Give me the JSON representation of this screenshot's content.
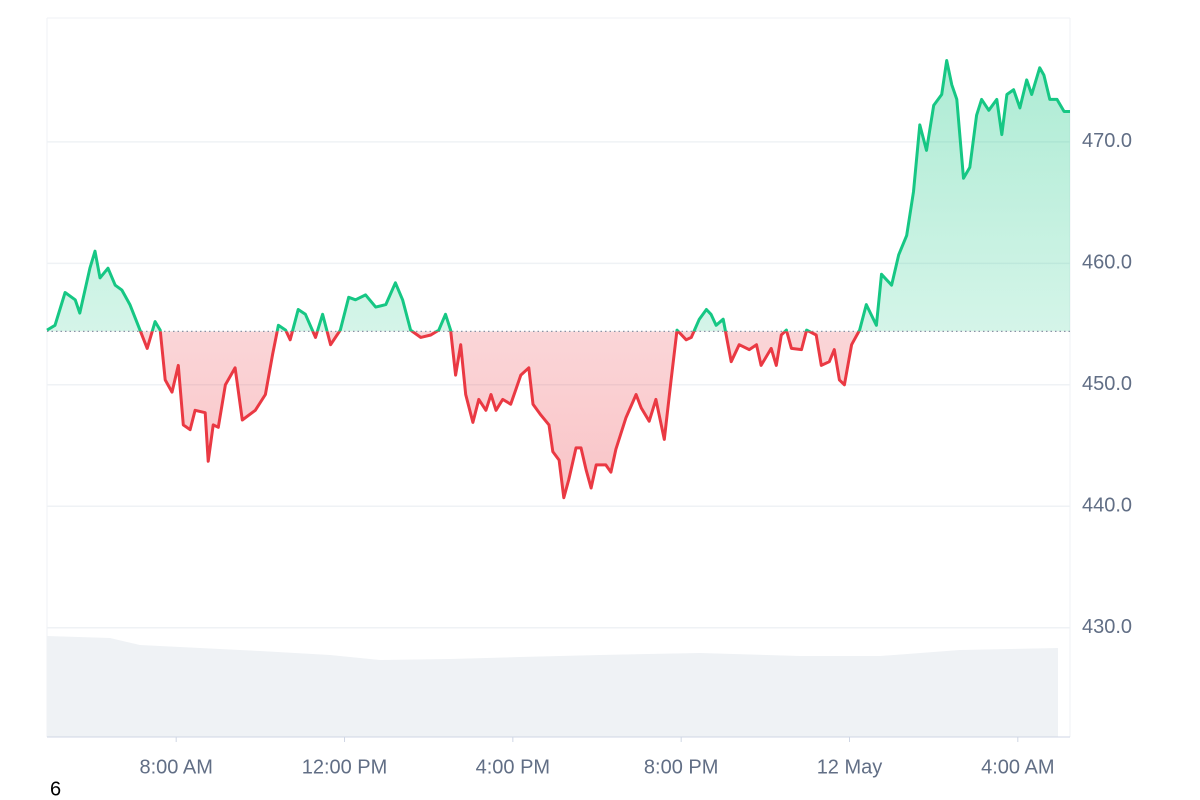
{
  "chart_data": {
    "type": "line",
    "footer": "6",
    "x": [
      4.93,
      5.12,
      5.36,
      5.6,
      5.71,
      5.95,
      6.07,
      6.19,
      6.38,
      6.55,
      6.71,
      6.9,
      7.14,
      7.31,
      7.5,
      7.62,
      7.74,
      7.9,
      8.05,
      8.17,
      8.33,
      8.45,
      8.69,
      8.76,
      8.88,
      9.0,
      9.17,
      9.4,
      9.57,
      9.88,
      10.12,
      10.29,
      10.43,
      10.6,
      10.71,
      10.9,
      11.07,
      11.31,
      11.48,
      11.67,
      11.9,
      12.1,
      12.26,
      12.5,
      12.74,
      12.98,
      13.21,
      13.38,
      13.57,
      13.81,
      14.05,
      14.24,
      14.4,
      14.52,
      14.64,
      14.76,
      14.88,
      15.05,
      15.19,
      15.36,
      15.48,
      15.6,
      15.76,
      15.95,
      16.07,
      16.19,
      16.38,
      16.48,
      16.67,
      16.86,
      16.95,
      17.1,
      17.21,
      17.33,
      17.5,
      17.62,
      17.74,
      17.86,
      17.98,
      18.21,
      18.33,
      18.45,
      18.69,
      18.93,
      19.05,
      19.24,
      19.4,
      19.6,
      19.76,
      19.9,
      20.12,
      20.24,
      20.43,
      20.6,
      20.71,
      20.83,
      21.0,
      21.19,
      21.38,
      21.62,
      21.79,
      21.9,
      22.14,
      22.26,
      22.38,
      22.5,
      22.62,
      22.86,
      22.98,
      23.21,
      23.33,
      23.52,
      23.64,
      23.76,
      23.88,
      24.05,
      24.24,
      24.4,
      24.64,
      24.76,
      25.0,
      25.17,
      25.36,
      25.52,
      25.67,
      25.83,
      26.0,
      26.19,
      26.31,
      26.43,
      26.55,
      26.71,
      26.86,
      27.02,
      27.14,
      27.31,
      27.5,
      27.62,
      27.74,
      27.9,
      28.05,
      28.21,
      28.33,
      28.52,
      28.62,
      28.76,
      28.93,
      29.1,
      29.24
    ],
    "values": [
      454.5,
      454.9,
      457.6,
      457.0,
      455.9,
      459.6,
      461.0,
      458.8,
      459.6,
      458.2,
      457.8,
      456.6,
      454.5,
      453.0,
      455.2,
      454.5,
      450.4,
      449.4,
      451.6,
      446.7,
      446.3,
      447.9,
      447.7,
      443.7,
      446.7,
      446.5,
      450.0,
      451.4,
      447.1,
      447.9,
      449.2,
      452.5,
      454.9,
      454.5,
      453.7,
      456.2,
      455.8,
      453.9,
      455.8,
      453.3,
      454.5,
      457.2,
      457.0,
      457.4,
      456.4,
      456.6,
      458.4,
      457.0,
      454.5,
      453.9,
      454.1,
      454.5,
      455.8,
      454.5,
      450.8,
      453.3,
      449.2,
      446.9,
      448.8,
      447.9,
      449.2,
      447.9,
      448.8,
      448.4,
      449.6,
      450.8,
      451.4,
      448.4,
      447.5,
      446.7,
      444.5,
      443.8,
      440.7,
      442.2,
      444.8,
      444.8,
      443.0,
      441.5,
      443.4,
      443.4,
      442.8,
      444.7,
      447.3,
      449.2,
      448.1,
      447.0,
      448.8,
      445.5,
      450.4,
      454.5,
      453.7,
      453.9,
      455.4,
      456.2,
      455.8,
      454.9,
      455.4,
      451.9,
      453.3,
      452.9,
      453.3,
      451.6,
      453.0,
      451.6,
      454.1,
      454.5,
      453.0,
      452.9,
      454.5,
      454.1,
      451.6,
      451.9,
      452.9,
      450.4,
      450.0,
      453.3,
      454.5,
      456.6,
      454.9,
      459.1,
      458.2,
      460.7,
      462.3,
      465.9,
      471.4,
      469.3,
      473.0,
      473.9,
      476.7,
      474.7,
      473.5,
      467.0,
      467.9,
      472.2,
      473.5,
      472.6,
      473.5,
      470.6,
      473.9,
      474.3,
      472.8,
      475.1,
      473.9,
      476.1,
      475.5,
      473.5,
      473.5,
      472.5,
      472.5
    ],
    "baseline": 454.4,
    "up_color": "#16c784",
    "down_color": "#ea3943",
    "xlim": [
      4.93,
      29.24
    ],
    "xticks": [
      {
        "value": 8,
        "label": "8:00 AM"
      },
      {
        "value": 12,
        "label": "12:00 PM"
      },
      {
        "value": 16,
        "label": "4:00 PM"
      },
      {
        "value": 20,
        "label": "8:00 PM"
      },
      {
        "value": 24,
        "label": "12 May"
      },
      {
        "value": 28,
        "label": "4:00 AM"
      }
    ],
    "ylim": [
      421,
      480.2
    ],
    "yticks": [
      {
        "value": 430,
        "label": "430.0"
      },
      {
        "value": 440,
        "label": "440.0"
      },
      {
        "value": 450,
        "label": "450.0"
      },
      {
        "value": 460,
        "label": "460.0"
      },
      {
        "value": 470,
        "label": "470.0"
      }
    ],
    "grid": true
  }
}
